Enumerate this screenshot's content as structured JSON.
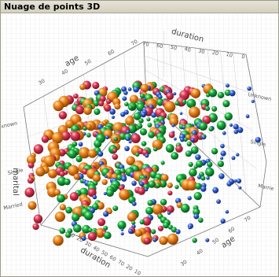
{
  "window": {
    "title": "Nuage de points 3D"
  },
  "chart_data": {
    "type": "scatter",
    "subtype": "3d-bubble",
    "title": "",
    "axes": {
      "duration": {
        "label": "duration",
        "ticks": [
          "0",
          "10",
          "20",
          "30",
          "40",
          "50",
          "60",
          "70"
        ],
        "range": [
          0,
          70
        ]
      },
      "age": {
        "label": "age",
        "ticks": [
          "30",
          "40",
          "50",
          "60",
          "70"
        ],
        "range": [
          20,
          70
        ]
      },
      "marital": {
        "label": "marital",
        "ticks_left": [
          "nknown",
          "Single",
          "Married"
        ],
        "ticks_right": [
          "Unknown",
          "Single",
          "Marrie"
        ],
        "categories": [
          "Unknown",
          "Single",
          "Married"
        ]
      }
    },
    "tick_labels_bottom": {
      "age": [
        "70",
        "60",
        "50",
        "40",
        "30"
      ],
      "duration": [
        "10",
        "20",
        "30",
        "40",
        "50",
        "60",
        "70",
        "20",
        "10"
      ]
    },
    "series_colors": {
      "orange": "#e07a1a",
      "red": "#d8364e",
      "green": "#1aa33c",
      "blue": "#2f5fd0"
    },
    "point_count_estimate": 600,
    "grid": true,
    "legend": "none"
  }
}
